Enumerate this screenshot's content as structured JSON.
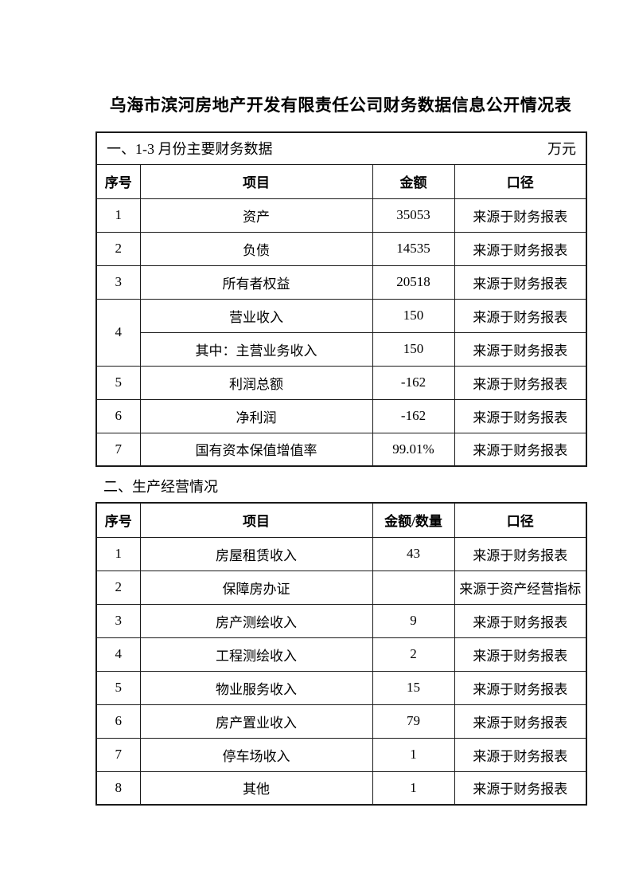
{
  "page": {
    "title": "乌海市滨河房地产开发有限责任公司财务数据信息公开情况表"
  },
  "colors": {
    "text": "#000000",
    "border": "#1a1a1a",
    "background": "#ffffff"
  },
  "section1": {
    "heading": "一、1-3 月份主要财务数据",
    "unit": "万元",
    "columns": [
      "序号",
      "项目",
      "金额",
      "口径"
    ],
    "rows": [
      {
        "no": "1",
        "item": "资产",
        "amount": "35053",
        "caliber": "来源于财务报表"
      },
      {
        "no": "2",
        "item": "负债",
        "amount": "14535",
        "caliber": "来源于财务报表"
      },
      {
        "no": "3",
        "item": "所有者权益",
        "amount": "20518",
        "caliber": "来源于财务报表"
      },
      {
        "no": "4",
        "item": "营业收入",
        "amount": "150",
        "caliber": "来源于财务报表"
      },
      {
        "no": "",
        "item": "其中：主营业务收入",
        "amount": "150",
        "caliber": "来源于财务报表"
      },
      {
        "no": "5",
        "item": "利润总额",
        "amount": "-162",
        "caliber": "来源于财务报表"
      },
      {
        "no": "6",
        "item": "净利润",
        "amount": "-162",
        "caliber": "来源于财务报表"
      },
      {
        "no": "7",
        "item": "国有资本保值增值率",
        "amount": "99.01%",
        "caliber": "来源于财务报表"
      }
    ]
  },
  "section2": {
    "heading": "二、生产经营情况",
    "columns": [
      "序号",
      "项目",
      "金额/数量",
      "口径"
    ],
    "rows": [
      {
        "no": "1",
        "item": "房屋租赁收入",
        "amount": "43",
        "caliber": "来源于财务报表"
      },
      {
        "no": "2",
        "item": "保障房办证",
        "amount": "",
        "caliber": "来源于资产经营指标"
      },
      {
        "no": "3",
        "item": "房产测绘收入",
        "amount": "9",
        "caliber": "来源于财务报表"
      },
      {
        "no": "4",
        "item": "工程测绘收入",
        "amount": "2",
        "caliber": "来源于财务报表"
      },
      {
        "no": "5",
        "item": "物业服务收入",
        "amount": "15",
        "caliber": "来源于财务报表"
      },
      {
        "no": "6",
        "item": "房产置业收入",
        "amount": "79",
        "caliber": "来源于财务报表"
      },
      {
        "no": "7",
        "item": "停车场收入",
        "amount": "1",
        "caliber": "来源于财务报表"
      },
      {
        "no": "8",
        "item": "其他",
        "amount": "1",
        "caliber": "来源于财务报表"
      }
    ]
  }
}
